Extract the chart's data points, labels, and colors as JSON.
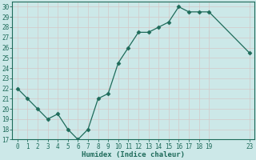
{
  "x": [
    0,
    1,
    2,
    3,
    4,
    5,
    6,
    7,
    8,
    9,
    10,
    11,
    12,
    13,
    14,
    15,
    16,
    17,
    18,
    19,
    23
  ],
  "y": [
    22,
    21,
    20,
    19,
    19.5,
    18,
    17,
    18,
    21,
    21.5,
    24.5,
    26,
    27.5,
    27.5,
    28,
    28.5,
    30,
    29.5,
    29.5,
    29.5,
    25.5
  ],
  "line_color": "#1e6b5a",
  "marker": "D",
  "marker_size": 2.5,
  "bg_color": "#cce8e8",
  "plot_bg_color": "#cce8e8",
  "grid_color": "#b8d4d4",
  "spine_color": "#1e6b5a",
  "xlabel": "Humidex (Indice chaleur)",
  "xlim": [
    -0.5,
    23.5
  ],
  "ylim": [
    17,
    30.5
  ],
  "yticks": [
    17,
    18,
    19,
    20,
    21,
    22,
    23,
    24,
    25,
    26,
    27,
    28,
    29,
    30
  ],
  "xticks": [
    0,
    1,
    2,
    3,
    4,
    5,
    6,
    7,
    8,
    9,
    10,
    11,
    12,
    13,
    14,
    15,
    16,
    17,
    18,
    19,
    23
  ],
  "xlabel_fontsize": 6.5,
  "tick_fontsize": 5.5
}
